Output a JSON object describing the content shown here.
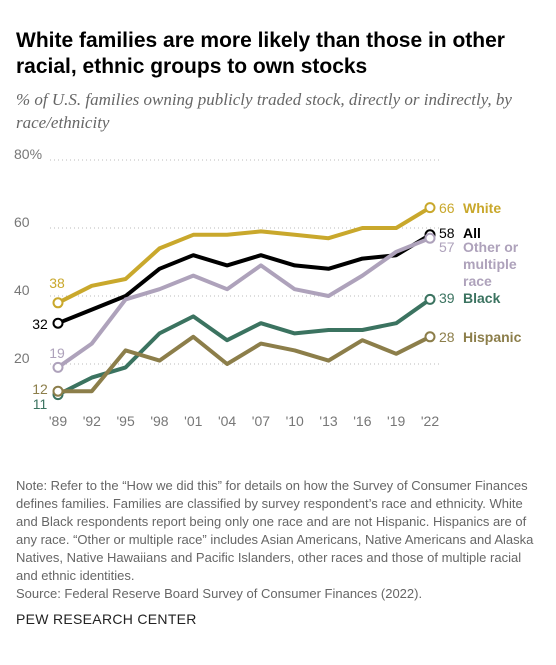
{
  "title": "White families are more likely than those in other racial, ethnic groups to own stocks",
  "subtitle": "% of U.S. families owning publicly traded stock, directly or indirectly, by race/ethnicity",
  "note": "Note: Refer to the “How we did this” for details on how the Survey of Consumer Finances defines families. Families are classified by survey respondent’s race and ethnicity. White and Black respondents report being only one race and are not Hispanic. Hispanics are of any race. “Other or multiple race” includes Asian Americans, Native Americans and Alaska Natives, Native Hawaiians and Pacific Islanders, other races and those of multiple racial and ethnic identities.",
  "source": "Source: Federal Reserve Board Survey of Consumer Finances (2022).",
  "brand": "PEW RESEARCH CENTER",
  "chart_data": {
    "type": "line",
    "x": [
      "'89",
      "'92",
      "'95",
      "'98",
      "'01",
      "'04",
      "'07",
      "'10",
      "'13",
      "'16",
      "'19",
      "'22"
    ],
    "ylim": [
      0,
      80
    ],
    "yticks": [
      20,
      40,
      60,
      80
    ],
    "ytick_labels": [
      "20",
      "40",
      "60",
      "80%"
    ],
    "grid": "horizontal dotted",
    "series": [
      {
        "name": "White",
        "color": "#c9a82c",
        "values": [
          38,
          43,
          45,
          54,
          58,
          58,
          59,
          58,
          57,
          60,
          60,
          66
        ],
        "start_label": "38",
        "end_label": "66"
      },
      {
        "name": "All",
        "color": "#000000",
        "values": [
          32,
          36,
          40,
          48,
          52,
          49,
          52,
          49,
          48,
          51,
          52,
          58
        ],
        "start_label": "32",
        "end_label": "58"
      },
      {
        "name": "Other or multiple race",
        "color": "#aea2bb",
        "values": [
          19,
          26,
          39,
          42,
          46,
          42,
          49,
          42,
          40,
          46,
          53,
          57
        ],
        "start_label": "19",
        "end_label": "57"
      },
      {
        "name": "Black",
        "color": "#3b7360",
        "values": [
          11,
          16,
          19,
          29,
          34,
          27,
          32,
          29,
          30,
          30,
          32,
          39
        ],
        "start_label": "11",
        "end_label": "39"
      },
      {
        "name": "Hispanic",
        "color": "#8c7e4a",
        "values": [
          12,
          12,
          24,
          21,
          28,
          20,
          26,
          24,
          21,
          27,
          23,
          28
        ],
        "start_label": "12",
        "end_label": "28"
      }
    ]
  }
}
